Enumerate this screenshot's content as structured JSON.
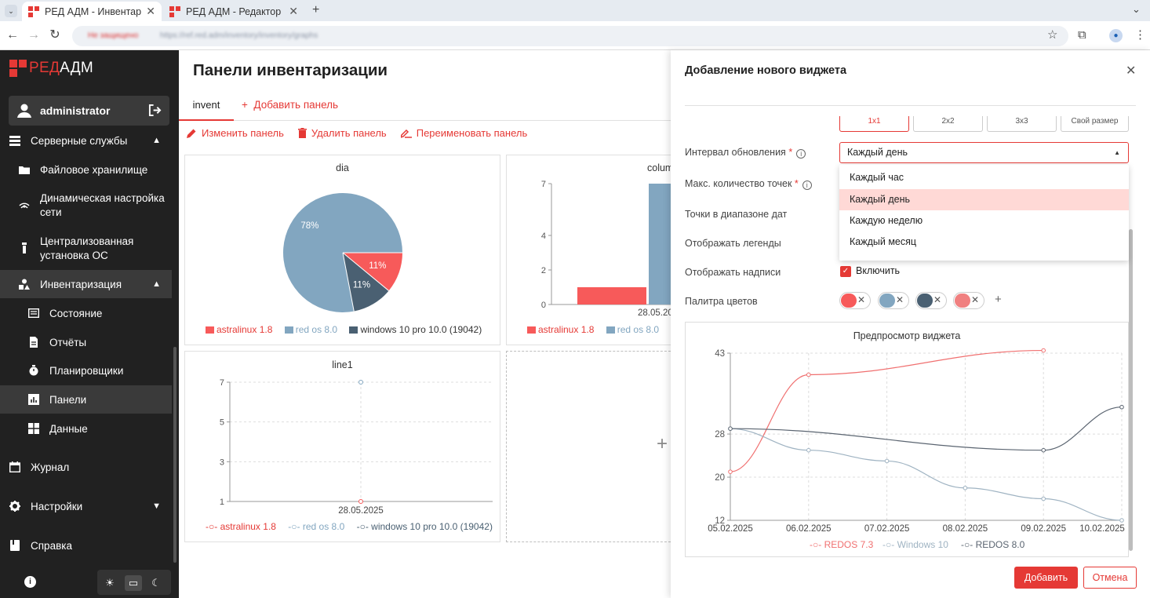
{
  "browser": {
    "tabs": [
      {
        "title": "РЕД АДМ - Инвентариза"
      },
      {
        "title": "РЕД АДМ - Редактор об"
      }
    ],
    "new_tab": "+",
    "url_security": "Не защищено",
    "url": "https://ref.red.adm/inventory/inventory/graphs"
  },
  "sidebar": {
    "logo": {
      "brand": "РЕД",
      "rest": "АДМ"
    },
    "user": "administrator",
    "items": [
      {
        "label": "Серверные службы",
        "chevron": "▲"
      },
      {
        "label": "Файловое хранилище"
      },
      {
        "label": "Динамическая настройка",
        "label2": "сети"
      },
      {
        "label": "Централизованная",
        "label2": "установка ОС"
      },
      {
        "label": "Инвентаризация",
        "chevron": "▲"
      },
      {
        "label": "Состояние"
      },
      {
        "label": "Отчёты"
      },
      {
        "label": "Планировщики"
      },
      {
        "label": "Панели"
      },
      {
        "label": "Данные"
      },
      {
        "label": "Журнал"
      },
      {
        "label": "Настройки",
        "chevron": "▼"
      },
      {
        "label": "Справка"
      }
    ]
  },
  "main": {
    "title": "Панели инвентаризации",
    "tab": "invent",
    "add_panel": "Добавить панель",
    "actions": {
      "edit": "Изменить панель",
      "delete": "Удалить панель",
      "rename": "Переименовать панель"
    },
    "add_widget_plus": "+"
  },
  "panel": {
    "title": "Добавление нового виджета",
    "sizes": [
      "1x1",
      "2x2",
      "3x3",
      "Свой размер"
    ],
    "fields": {
      "interval": "Интервал обновления",
      "max_points": "Макс. количество точек",
      "date_range": "Точки в диапазоне дат",
      "legends": "Отображать легенды",
      "labels": "Отображать надписи",
      "palette": "Палитра цветов"
    },
    "required_mark": "*",
    "interval_value": "Каждый день",
    "dropdown": [
      "Каждый час",
      "Каждый день",
      "Каждую неделю",
      "Каждый месяц"
    ],
    "include": "Включить",
    "palette": [
      "#f75a5a",
      "#82a6c0",
      "#4a6072",
      "#f08080"
    ],
    "preview_title": "Предпросмотр виджета",
    "add_button": "Добавить",
    "cancel_button": "Отмена"
  },
  "chart_data": [
    {
      "type": "pie",
      "title": "dia",
      "slices": [
        {
          "name": "astralinux 1.8",
          "value": 11,
          "color": "#f75a5a"
        },
        {
          "name": "windows 10 pro 10.0 (19042)",
          "value": 11,
          "color": "#4a6072"
        },
        {
          "name": "red os 8.0",
          "value": 78,
          "color": "#82a6c0"
        }
      ],
      "legend": [
        "astralinux 1.8",
        "red os 8.0",
        "windows 10 pro 10.0 (19042)"
      ]
    },
    {
      "type": "bar",
      "title": "colum",
      "categories": [
        "28.05.20"
      ],
      "yticks": [
        0,
        2,
        4,
        7
      ],
      "ylim": [
        0,
        7
      ],
      "series": [
        {
          "name": "astralinux 1.8",
          "values": [
            1
          ],
          "color": "#f75a5a"
        },
        {
          "name": "red os 8.0",
          "values": [
            7
          ],
          "color": "#82a6c0"
        }
      ],
      "legend": [
        "astralinux 1.8",
        "red os 8.0"
      ]
    },
    {
      "type": "line",
      "title": "line1",
      "categories": [
        "28.05.2025"
      ],
      "yticks": [
        1,
        3,
        5,
        7
      ],
      "ylim": [
        1,
        7
      ],
      "points": [
        {
          "name": "astralinux 1.8",
          "value": 1
        },
        {
          "name": "red os 8.0",
          "value": 7
        }
      ],
      "legend": [
        "astralinux 1.8",
        "red os 8.0",
        "windows 10 pro 10.0 (19042)"
      ],
      "colors": [
        "#f75a5a",
        "#82a6c0",
        "#4a6072"
      ]
    },
    {
      "type": "line",
      "title": "Предпросмотр виджета",
      "x": [
        "05.02.2025",
        "06.02.2025",
        "07.02.2025",
        "08.02.2025",
        "09.02.2025",
        "10.02.2025"
      ],
      "yticks": [
        12,
        20,
        28,
        43
      ],
      "ylim": [
        12,
        43
      ],
      "series": [
        {
          "name": "REDOS 7.3",
          "color": "#f07070",
          "values": [
            21,
            39,
            null,
            null,
            43.5,
            null
          ]
        },
        {
          "name": "Windows 10",
          "color": "#9fb3c2",
          "values": [
            29,
            25,
            23,
            18,
            16,
            12
          ]
        },
        {
          "name": "REDOS 8.0",
          "color": "#5a6470",
          "values": [
            29,
            null,
            null,
            null,
            25,
            33
          ]
        }
      ]
    }
  ]
}
